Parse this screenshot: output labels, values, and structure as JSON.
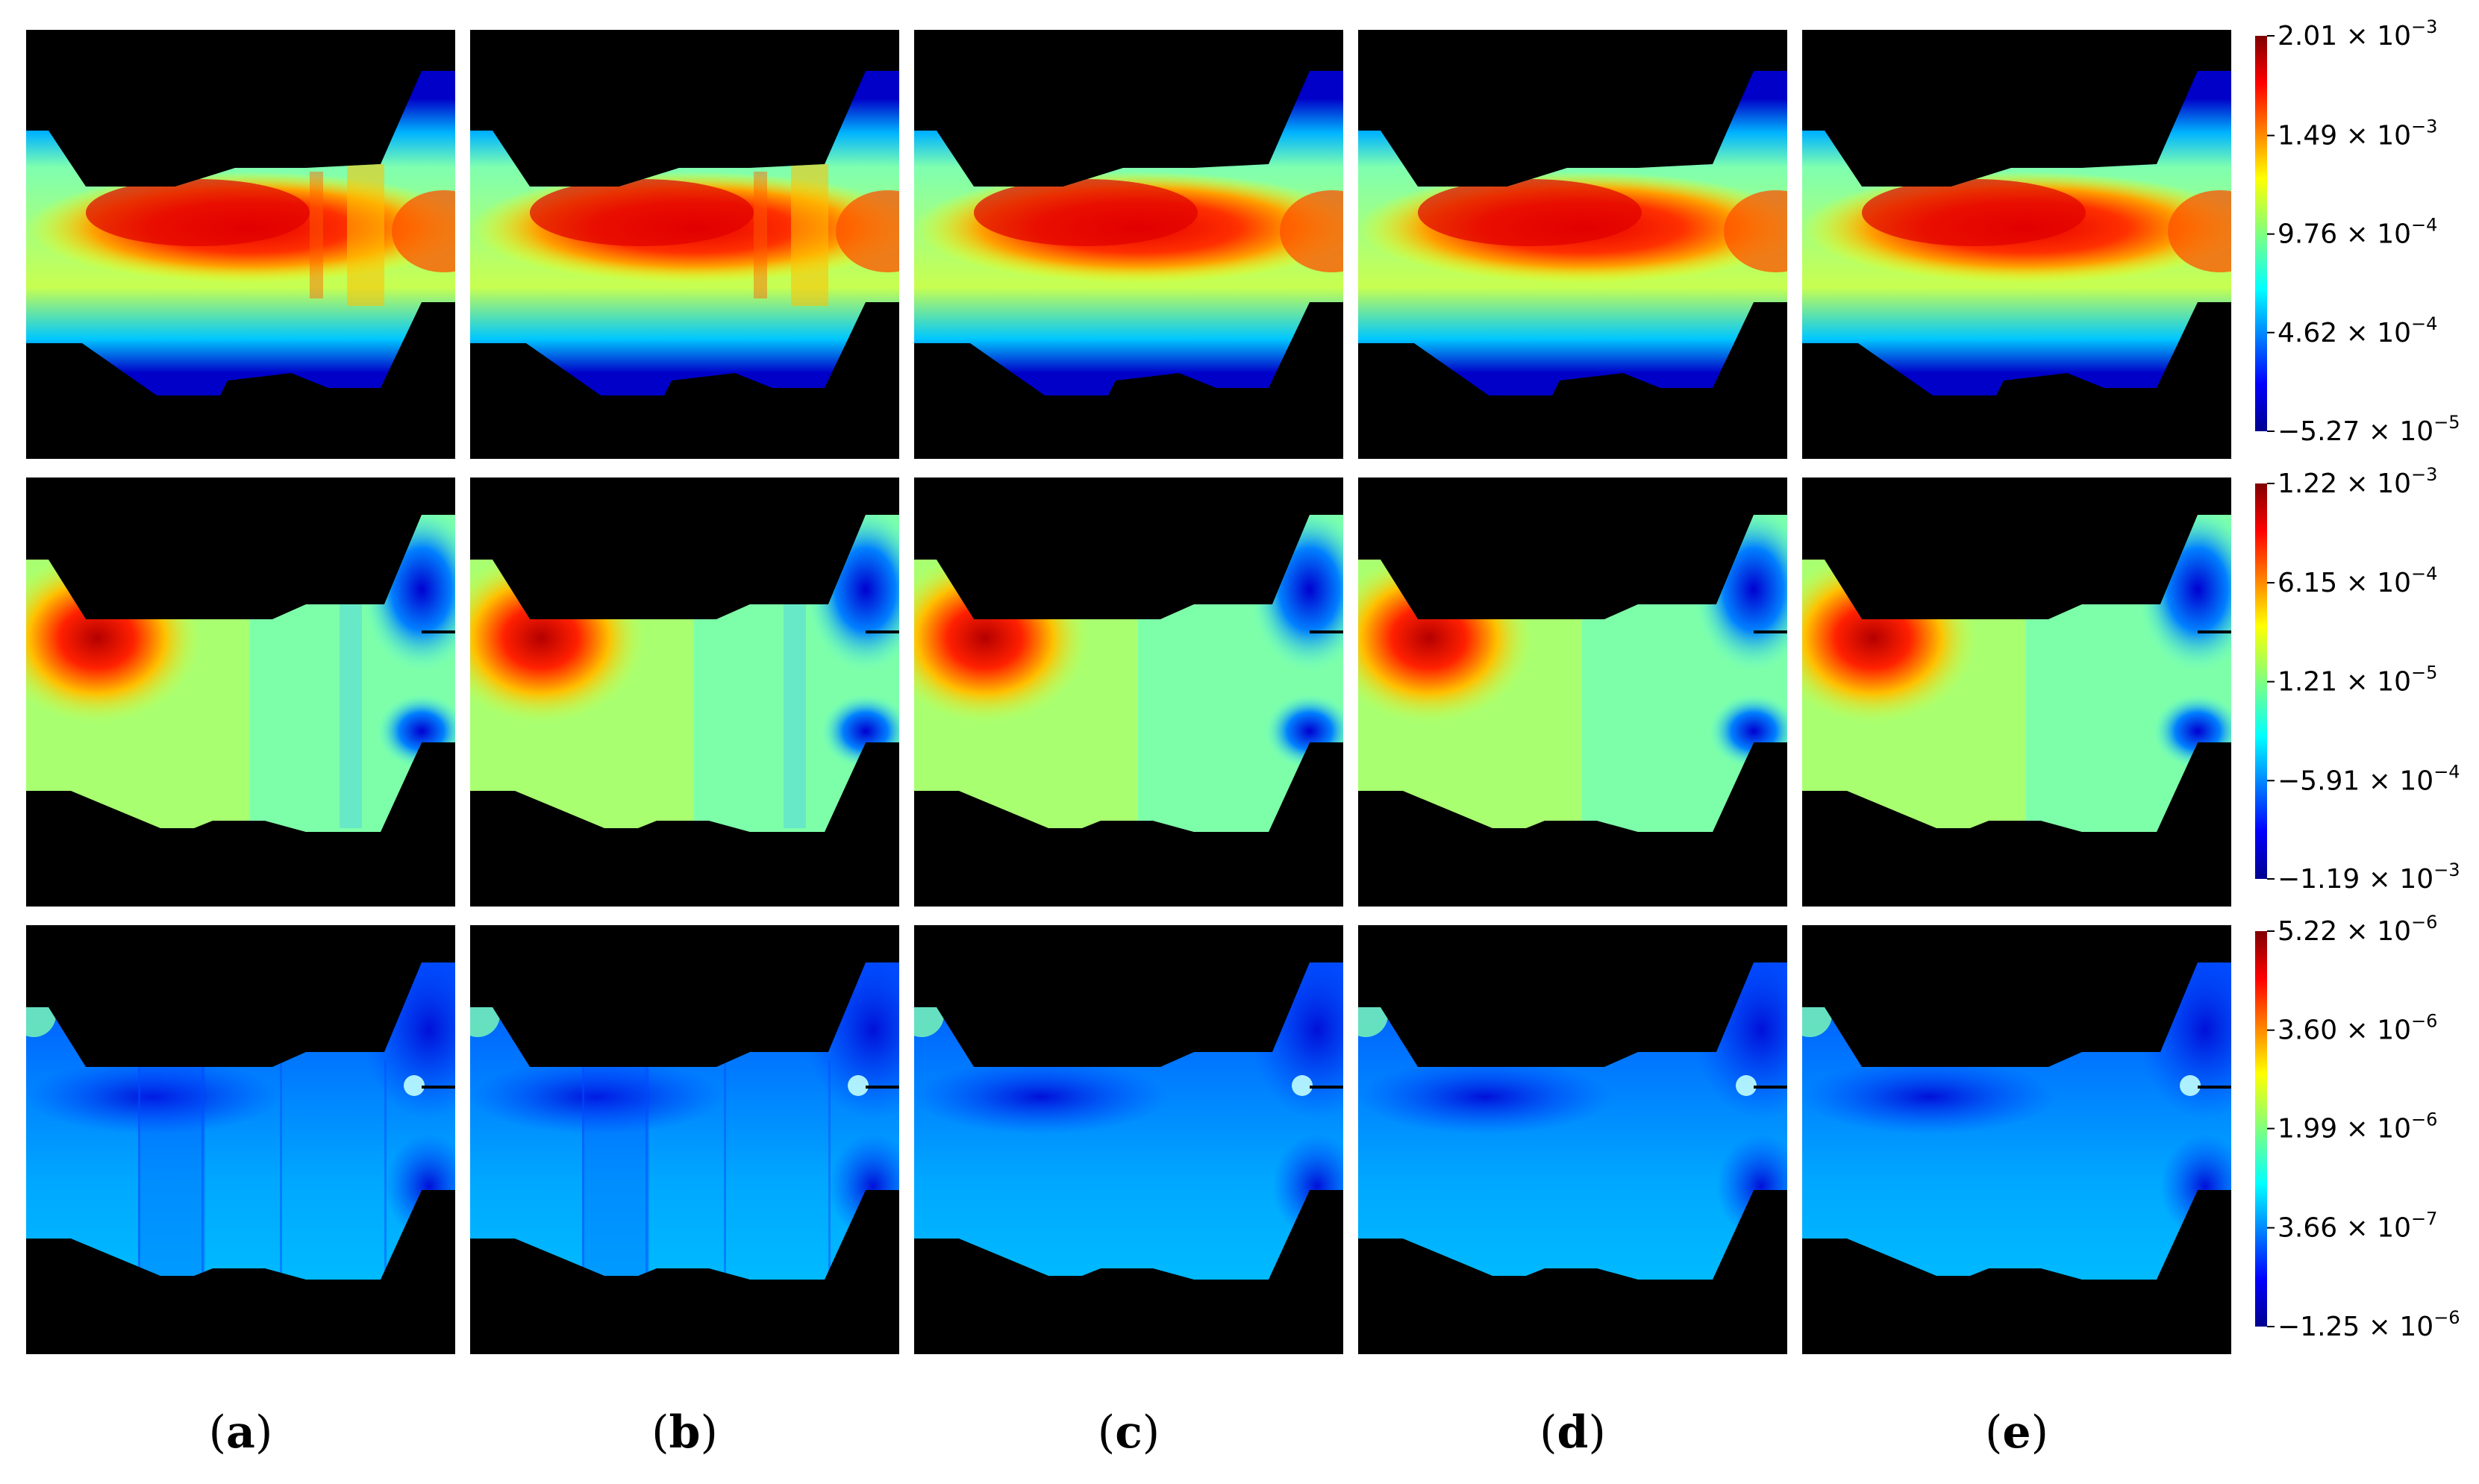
{
  "chart_data": {
    "type": "heatmap",
    "columns": [
      {
        "label": "(a)",
        "letter": "a"
      },
      {
        "label": "(b)",
        "letter": "b"
      },
      {
        "label": "(c)",
        "letter": "c"
      },
      {
        "label": "(d)",
        "letter": "d"
      },
      {
        "label": "(e)",
        "letter": "e"
      }
    ],
    "rows": [
      {
        "field": "row-1",
        "colormap": "jet",
        "range": [
          -5.27e-05,
          0.00201
        ],
        "ticks": [
          {
            "value": 0.00201,
            "mant": "2.01",
            "exp": "−3"
          },
          {
            "value": 0.00149,
            "mant": "1.49",
            "exp": "−3"
          },
          {
            "value": 0.000976,
            "mant": "9.76",
            "exp": "−4"
          },
          {
            "value": 0.000462,
            "mant": "4.62",
            "exp": "−4"
          },
          {
            "value": -5.27e-05,
            "mant": "−5.27",
            "exp": "−5"
          }
        ]
      },
      {
        "field": "row-2",
        "colormap": "jet",
        "range": [
          -0.00119,
          0.00122
        ],
        "ticks": [
          {
            "value": 0.00122,
            "mant": "1.22",
            "exp": "−3"
          },
          {
            "value": 0.000615,
            "mant": "6.15",
            "exp": "−4"
          },
          {
            "value": 1.21e-05,
            "mant": "1.21",
            "exp": "−5"
          },
          {
            "value": -0.000591,
            "mant": "−5.91",
            "exp": "−4"
          },
          {
            "value": -0.00119,
            "mant": "−1.19",
            "exp": "−3"
          }
        ]
      },
      {
        "field": "row-3",
        "colormap": "jet",
        "range": [
          -1.25e-06,
          5.22e-06
        ],
        "ticks": [
          {
            "value": 5.22e-06,
            "mant": "5.22",
            "exp": "−6"
          },
          {
            "value": 3.6e-06,
            "mant": "3.60",
            "exp": "−6"
          },
          {
            "value": 1.99e-06,
            "mant": "1.99",
            "exp": "−6"
          },
          {
            "value": 3.66e-07,
            "mant": "3.66",
            "exp": "−7"
          },
          {
            "value": -1.25e-06,
            "mant": "−1.25",
            "exp": "−6"
          }
        ]
      }
    ]
  }
}
